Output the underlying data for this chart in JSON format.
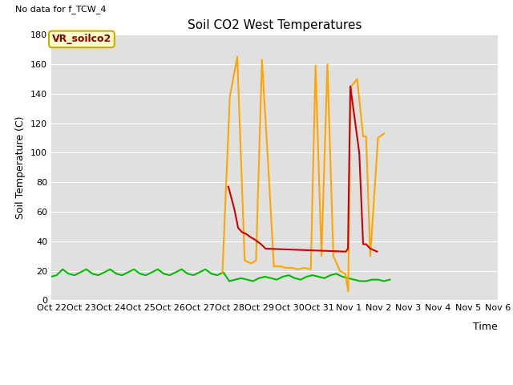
{
  "title": "Soil CO2 West Temperatures",
  "xlabel": "Time",
  "ylabel": "Soil Temperature (C)",
  "no_data_text": "No data for f_TCW_4",
  "legend_label": "VR_soilco2",
  "ylim": [
    0,
    180
  ],
  "yticks": [
    0,
    20,
    40,
    60,
    80,
    100,
    120,
    140,
    160,
    180
  ],
  "background_color": "#e0e0e0",
  "x_tick_labels": [
    "Oct 22",
    "Oct 23",
    "Oct 24",
    "Oct 25",
    "Oct 26",
    "Oct 27",
    "Oct 28",
    "Oct 29",
    "Oct 30",
    "Oct 31",
    "Nov 1",
    "Nov 2",
    "Nov 3",
    "Nov 4",
    "Nov 5",
    "Nov 6"
  ],
  "TCW_1": {
    "color": "#cc0000",
    "x": [
      5.95,
      6.15,
      6.28,
      6.42,
      6.55,
      6.68,
      6.85,
      7.05,
      7.2,
      9.9,
      9.97,
      10.05,
      10.35,
      10.48,
      10.58,
      10.72,
      10.95
    ],
    "y": [
      77,
      62,
      49,
      46,
      45,
      43,
      41,
      38,
      35,
      33,
      35,
      145,
      100,
      38,
      38,
      35,
      33
    ]
  },
  "TCW_2": {
    "color": "#ffa500",
    "x": [
      5.75,
      6.0,
      6.25,
      6.5,
      6.72,
      6.88,
      7.08,
      7.28,
      7.48,
      7.7,
      7.88,
      8.08,
      8.28,
      8.5,
      8.72,
      8.88,
      9.08,
      9.28,
      9.48,
      9.7,
      9.88,
      9.98,
      10.03,
      10.08,
      10.28,
      10.48,
      10.58,
      10.72,
      10.98,
      11.18
    ],
    "y": [
      18,
      138,
      165,
      27,
      25,
      27,
      163,
      95,
      23,
      23,
      22,
      22,
      21,
      22,
      21,
      159,
      30,
      160,
      30,
      20,
      18,
      6,
      110,
      145,
      150,
      111,
      111,
      30,
      110,
      113
    ]
  },
  "TCW_3": {
    "color": "#00bb00",
    "x": [
      0.0,
      0.18,
      0.38,
      0.58,
      0.78,
      0.98,
      1.18,
      1.38,
      1.58,
      1.78,
      1.98,
      2.18,
      2.38,
      2.58,
      2.78,
      2.98,
      3.18,
      3.38,
      3.58,
      3.78,
      3.98,
      4.18,
      4.38,
      4.58,
      4.78,
      4.98,
      5.18,
      5.38,
      5.58,
      5.78,
      5.98,
      6.18,
      6.38,
      6.58,
      6.78,
      6.98,
      7.18,
      7.38,
      7.58,
      7.78,
      7.98,
      8.18,
      8.38,
      8.58,
      8.78,
      8.98,
      9.18,
      9.38,
      9.58,
      9.78,
      9.98,
      10.18,
      10.38,
      10.58,
      10.78,
      10.98,
      11.18,
      11.38
    ],
    "y": [
      16,
      17,
      21,
      18,
      17,
      19,
      21,
      18,
      17,
      19,
      21,
      18,
      17,
      19,
      21,
      18,
      17,
      19,
      21,
      18,
      17,
      19,
      21,
      18,
      17,
      19,
      21,
      18,
      17,
      19,
      13,
      14,
      15,
      14,
      13,
      15,
      16,
      15,
      14,
      16,
      17,
      15,
      14,
      16,
      17,
      16,
      15,
      17,
      18,
      16,
      15,
      14,
      13,
      13,
      14,
      14,
      13,
      14
    ]
  }
}
